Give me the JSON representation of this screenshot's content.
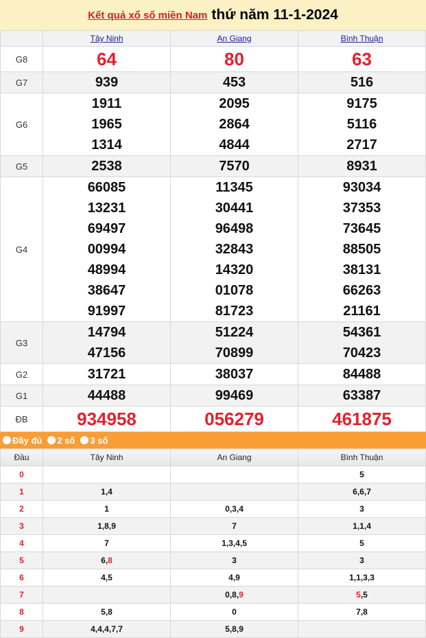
{
  "header": {
    "link": "Kết quả xổ số miền Nam",
    "date": "thứ năm 11-1-2024"
  },
  "provinces": [
    "Tây Ninh",
    "An Giang",
    "Bình Thuận"
  ],
  "prizes": [
    {
      "label": "G8",
      "values": [
        [
          "64"
        ],
        [
          "80"
        ],
        [
          "63"
        ]
      ],
      "style": "big"
    },
    {
      "label": "G7",
      "values": [
        [
          "939"
        ],
        [
          "453"
        ],
        [
          "516"
        ]
      ]
    },
    {
      "label": "G6",
      "values": [
        [
          "1911",
          "1965",
          "1314"
        ],
        [
          "2095",
          "2864",
          "4844"
        ],
        [
          "9175",
          "5116",
          "2717"
        ]
      ]
    },
    {
      "label": "G5",
      "values": [
        [
          "2538"
        ],
        [
          "7570"
        ],
        [
          "8931"
        ]
      ]
    },
    {
      "label": "G4",
      "values": [
        [
          "66085",
          "13231",
          "69497",
          "00994",
          "48994",
          "38647",
          "91997"
        ],
        [
          "11345",
          "30441",
          "96498",
          "32843",
          "14320",
          "01078",
          "81723"
        ],
        [
          "93034",
          "37353",
          "73645",
          "88505",
          "38131",
          "66263",
          "21161"
        ]
      ]
    },
    {
      "label": "G3",
      "values": [
        [
          "14794",
          "47156"
        ],
        [
          "51224",
          "70899"
        ],
        [
          "54361",
          "70423"
        ]
      ]
    },
    {
      "label": "G2",
      "values": [
        [
          "31721"
        ],
        [
          "38037"
        ],
        [
          "84488"
        ]
      ]
    },
    {
      "label": "G1",
      "values": [
        [
          "44488"
        ],
        [
          "99469"
        ],
        [
          "63387"
        ]
      ]
    },
    {
      "label": "ĐB",
      "values": [
        [
          "934958"
        ],
        [
          "056279"
        ],
        [
          "461875"
        ]
      ],
      "style": "big"
    }
  ],
  "options": [
    "Đầy đủ",
    "2 số",
    "3 số"
  ],
  "loto": {
    "head_label": "Đầu",
    "rows": [
      {
        "k": "0",
        "cells": [
          [],
          [],
          [
            {
              "v": "5"
            }
          ]
        ]
      },
      {
        "k": "1",
        "cells": [
          [
            {
              "v": "1"
            },
            {
              "v": "4"
            }
          ],
          [],
          [
            {
              "v": "6"
            },
            {
              "v": "6"
            },
            {
              "v": "7"
            }
          ]
        ]
      },
      {
        "k": "2",
        "cells": [
          [
            {
              "v": "1"
            }
          ],
          [
            {
              "v": "0"
            },
            {
              "v": "3"
            },
            {
              "v": "4"
            }
          ],
          [
            {
              "v": "3"
            }
          ]
        ]
      },
      {
        "k": "3",
        "cells": [
          [
            {
              "v": "1"
            },
            {
              "v": "8"
            },
            {
              "v": "9"
            }
          ],
          [
            {
              "v": "7"
            }
          ],
          [
            {
              "v": "1"
            },
            {
              "v": "1"
            },
            {
              "v": "4"
            }
          ]
        ]
      },
      {
        "k": "4",
        "cells": [
          [
            {
              "v": "7"
            }
          ],
          [
            {
              "v": "1"
            },
            {
              "v": "3"
            },
            {
              "v": "4"
            },
            {
              "v": "5"
            }
          ],
          [
            {
              "v": "5"
            }
          ]
        ]
      },
      {
        "k": "5",
        "cells": [
          [
            {
              "v": "6"
            },
            {
              "v": "8",
              "hot": true
            }
          ],
          [
            {
              "v": "3"
            }
          ],
          [
            {
              "v": "3"
            }
          ]
        ]
      },
      {
        "k": "6",
        "cells": [
          [
            {
              "v": "4"
            },
            {
              "v": "5"
            }
          ],
          [
            {
              "v": "4"
            },
            {
              "v": "9"
            }
          ],
          [
            {
              "v": "1"
            },
            {
              "v": "1"
            },
            {
              "v": "3"
            },
            {
              "v": "3"
            }
          ]
        ]
      },
      {
        "k": "7",
        "cells": [
          [],
          [
            {
              "v": "0"
            },
            {
              "v": "8"
            },
            {
              "v": "9",
              "hot": true
            }
          ],
          [
            {
              "v": "5",
              "hot": true
            },
            {
              "v": "5"
            }
          ]
        ]
      },
      {
        "k": "8",
        "cells": [
          [
            {
              "v": "5"
            },
            {
              "v": "8"
            }
          ],
          [
            {
              "v": "0"
            }
          ],
          [
            {
              "v": "7"
            },
            {
              "v": "8"
            }
          ]
        ]
      },
      {
        "k": "9",
        "cells": [
          [
            {
              "v": "4"
            },
            {
              "v": "4"
            },
            {
              "v": "4"
            },
            {
              "v": "7"
            },
            {
              "v": "7"
            }
          ],
          [
            {
              "v": "5"
            },
            {
              "v": "8"
            },
            {
              "v": "9"
            }
          ],
          []
        ]
      }
    ]
  },
  "colors": {
    "accent": "#e3212e",
    "bar": "#fa9d35",
    "header_bg": "#fcf1c5"
  }
}
